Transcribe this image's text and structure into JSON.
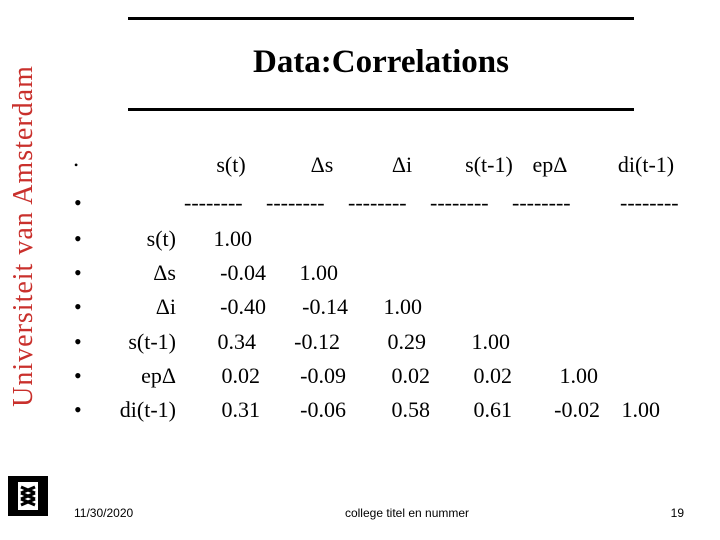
{
  "brand": {
    "vertical_text": "Universiteit van Amsterdam",
    "accent": "#c9302c"
  },
  "title": "Data:Correlations",
  "header": {
    "columns": [
      "s(t)",
      "Δs",
      "Δi",
      "s(t-1)",
      "epΔ",
      "di(t-1)"
    ],
    "dashes": [
      "--------",
      "--------",
      "--------",
      "--------",
      "--------",
      "--------"
    ]
  },
  "bullet": "•",
  "rows": [
    {
      "label": "s(t)",
      "values": [
        "1.00"
      ]
    },
    {
      "label": "Δs",
      "values": [
        "-0.04",
        "1.00"
      ]
    },
    {
      "label": "Δi",
      "values": [
        "-0.40",
        "-0.14",
        "1.00"
      ]
    },
    {
      "label": "s(t-1)",
      "values": [
        "0.34",
        "-0.12",
        "0.29",
        "1.00"
      ]
    },
    {
      "label": "epΔ",
      "values": [
        "0.02",
        "-0.09",
        "0.02",
        "0.02",
        "1.00"
      ]
    },
    {
      "label": "di(t-1)",
      "values": [
        "0.31",
        "-0.06",
        "0.58",
        "0.61",
        "-0.02",
        "1.00"
      ]
    }
  ],
  "footer": {
    "date": "11/30/2020",
    "center": "college titel en nummer",
    "page": "19"
  }
}
